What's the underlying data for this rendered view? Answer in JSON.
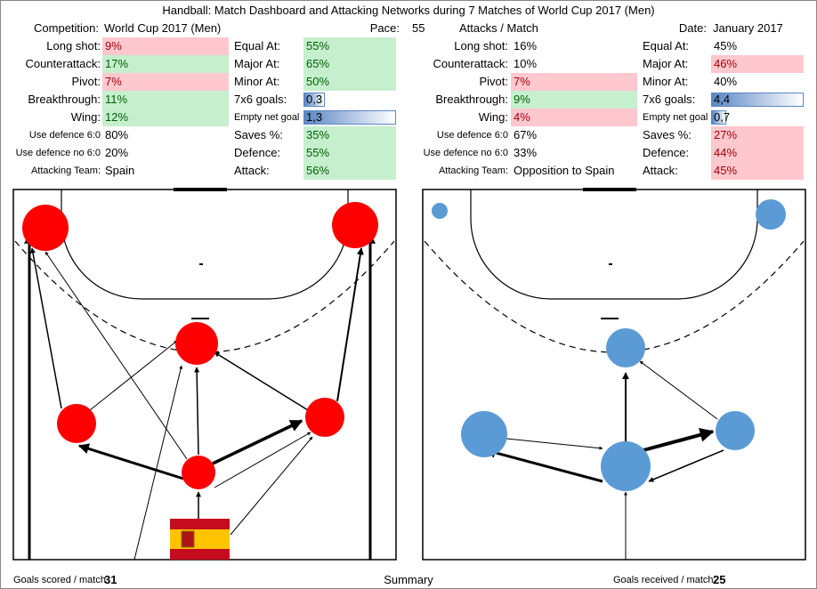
{
  "title": "Handball: Match Dashboard and Attacking Networks during 7 Matches of World Cup 2017 (Men)",
  "header": {
    "competition_label": "Competition:",
    "competition": "World Cup 2017 (Men)",
    "pace_label": "Pace:",
    "pace": "55",
    "attacks_label": "Attacks / Match",
    "date_label": "Date:",
    "date": "January 2017"
  },
  "panels": [
    {
      "left": [
        {
          "label": "Long shot:",
          "value": "9%",
          "status": "bad"
        },
        {
          "label": "Counterattack:",
          "value": "17%",
          "status": "good"
        },
        {
          "label": "Pivot:",
          "value": "7%",
          "status": "bad"
        },
        {
          "label": "Breakthrough:",
          "value": "11%",
          "status": "good"
        },
        {
          "label": "Wing:",
          "value": "12%",
          "status": "good"
        },
        {
          "label": "Use defence 6:0",
          "value": "80%",
          "status": "none"
        },
        {
          "label": "Use defence no 6:0",
          "value": "20%",
          "status": "none"
        },
        {
          "label": "Attacking Team:",
          "value": "Spain",
          "status": "none"
        }
      ],
      "right": [
        {
          "label": "Equal At:",
          "value": "55%",
          "status": "good"
        },
        {
          "label": "Major At:",
          "value": "65%",
          "status": "good"
        },
        {
          "label": "Minor At:",
          "value": "50%",
          "status": "good"
        },
        {
          "label": "7x6 goals:",
          "value": "0,3",
          "status": "bar",
          "bar_value": 0.3
        },
        {
          "label": "Empty net goal",
          "value": "1,3",
          "status": "bar",
          "bar_value": 1.3
        },
        {
          "label": "Saves %:",
          "value": "35%",
          "status": "good"
        },
        {
          "label": "Defence:",
          "value": "55%",
          "status": "good"
        },
        {
          "label": "Attack:",
          "value": "56%",
          "status": "good"
        }
      ],
      "footer_label": "Goals scored / match",
      "footer_value": "31"
    },
    {
      "left": [
        {
          "label": "Long shot:",
          "value": "16%",
          "status": "none"
        },
        {
          "label": "Counterattack:",
          "value": "10%",
          "status": "none"
        },
        {
          "label": "Pivot:",
          "value": "7%",
          "status": "bad"
        },
        {
          "label": "Breakthrough:",
          "value": "9%",
          "status": "good"
        },
        {
          "label": "Wing:",
          "value": "4%",
          "status": "bad"
        },
        {
          "label": "Use defence 6:0",
          "value": "67%",
          "status": "none"
        },
        {
          "label": "Use defence no 6:0",
          "value": "33%",
          "status": "none"
        },
        {
          "label": "Attacking Team:",
          "value": "Opposition to Spain",
          "status": "none"
        }
      ],
      "right": [
        {
          "label": "Equal At:",
          "value": "45%",
          "status": "none"
        },
        {
          "label": "Major At:",
          "value": "46%",
          "status": "bad"
        },
        {
          "label": "Minor At:",
          "value": "40%",
          "status": "none"
        },
        {
          "label": "7x6 goals:",
          "value": "4,4",
          "status": "bar",
          "bar_value": 4.4
        },
        {
          "label": "Empty net goal",
          "value": "0,7",
          "status": "bar",
          "bar_value": 0.7
        },
        {
          "label": "Saves %:",
          "value": "27%",
          "status": "bad"
        },
        {
          "label": "Defence:",
          "value": "44%",
          "status": "bad"
        },
        {
          "label": "Attack:",
          "value": "45%",
          "status": "bad"
        }
      ],
      "footer_label": "Goals received / match",
      "footer_value": "25"
    }
  ],
  "summary": "Summary"
}
